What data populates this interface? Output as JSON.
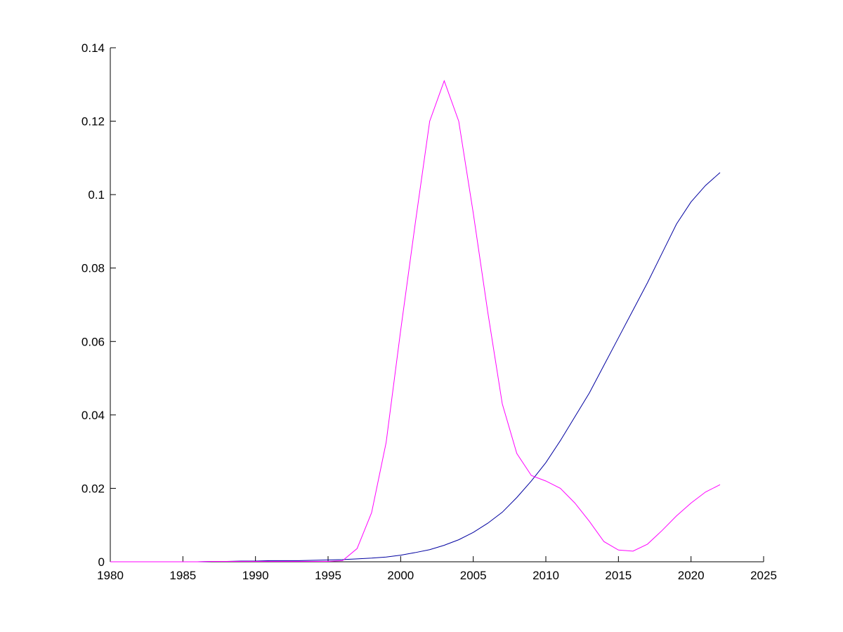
{
  "chart_data": {
    "type": "line",
    "x": [
      1980,
      1981,
      1982,
      1983,
      1984,
      1985,
      1986,
      1987,
      1988,
      1989,
      1990,
      1991,
      1992,
      1993,
      1994,
      1995,
      1996,
      1997,
      1998,
      1999,
      2000,
      2001,
      2002,
      2003,
      2004,
      2005,
      2006,
      2007,
      2008,
      2009,
      2010,
      2011,
      2012,
      2013,
      2014,
      2015,
      2016,
      2017,
      2018,
      2019,
      2020,
      2021,
      2022
    ],
    "series": [
      {
        "color": "#0000a0",
        "values": [
          0,
          0,
          0,
          0,
          0,
          0,
          0,
          0.0001,
          0.0001,
          0.0002,
          0.0002,
          0.0003,
          0.0003,
          0.0003,
          0.0004,
          0.0005,
          0.0006,
          0.0008,
          0.001,
          0.0013,
          0.0018,
          0.0025,
          0.0033,
          0.0045,
          0.006,
          0.008,
          0.0105,
          0.0135,
          0.0175,
          0.022,
          0.027,
          0.033,
          0.0395,
          0.046,
          0.0535,
          0.061,
          0.0685,
          0.076,
          0.084,
          0.092,
          0.098,
          0.1025,
          0.106
        ]
      },
      {
        "color": "#ff00ff",
        "values": [
          0,
          0,
          0,
          0,
          0,
          0,
          0,
          0.0001,
          0.0001,
          0.0001,
          0.0001,
          0.0001,
          0.0001,
          0.0001,
          0.0001,
          0.0001,
          0.0003,
          0.0036,
          0.0134,
          0.0325,
          0.063,
          0.092,
          0.12,
          0.131,
          0.12,
          0.095,
          0.068,
          0.043,
          0.0295,
          0.0235,
          0.022,
          0.02,
          0.016,
          0.011,
          0.0055,
          0.0032,
          0.0029,
          0.0048,
          0.0085,
          0.0125,
          0.016,
          0.019,
          0.021
        ]
      }
    ],
    "xlim": [
      1980,
      2025
    ],
    "xticks": [
      1980,
      1985,
      1990,
      1995,
      2000,
      2005,
      2010,
      2015,
      2020,
      2025
    ],
    "ylim": [
      0,
      0.14
    ],
    "yticks": [
      0,
      0.02,
      0.04,
      0.06,
      0.08,
      0.1,
      0.12,
      0.14
    ]
  }
}
